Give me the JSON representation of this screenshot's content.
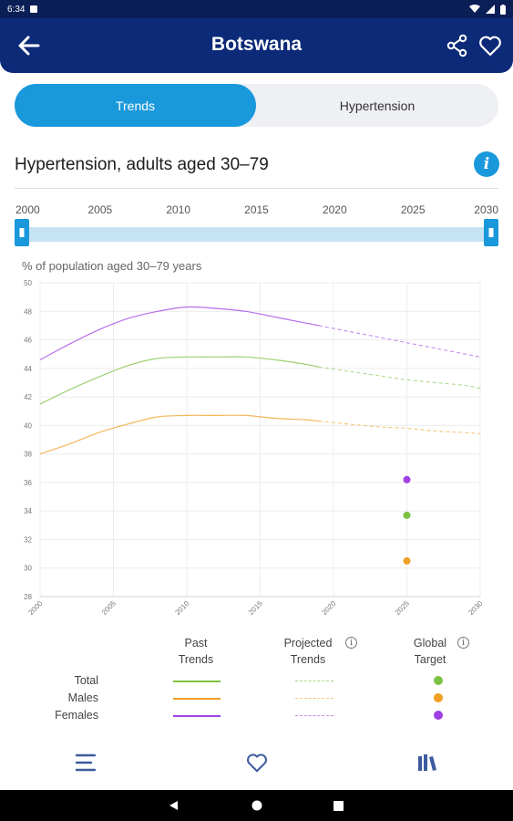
{
  "status_bar": {
    "time": "6:34"
  },
  "app_bar": {
    "title": "Botswana"
  },
  "tabs": [
    {
      "label": "Trends",
      "active": true
    },
    {
      "label": "Hypertension",
      "active": false
    }
  ],
  "section": {
    "title": "Hypertension, adults aged 30–79"
  },
  "range_slider": {
    "ticks": [
      "2000",
      "2005",
      "2010",
      "2015",
      "2020",
      "2025",
      "2030"
    ],
    "start": 2000,
    "end": 2030
  },
  "colors": {
    "accent": "#1a98dc",
    "app_bar": "#0c2a78",
    "total": "#7cc142",
    "males": "#f0a024",
    "females": "#9e3fe3"
  },
  "chart_data": {
    "type": "line",
    "ylabel": "% of population aged 30–79 years",
    "xlim": [
      2000,
      2030
    ],
    "ylim": [
      28,
      50
    ],
    "x_ticks": [
      2000,
      2005,
      2010,
      2015,
      2020,
      2025,
      2030
    ],
    "y_ticks": [
      28,
      30,
      32,
      34,
      36,
      38,
      40,
      42,
      44,
      46,
      48,
      50
    ],
    "grid": true,
    "series": [
      {
        "name": "Total",
        "color_key": "total",
        "past": {
          "x": [
            2000,
            2002,
            2004,
            2006,
            2008,
            2010,
            2012,
            2014,
            2016,
            2018,
            2019
          ],
          "y": [
            41.5,
            42.5,
            43.4,
            44.2,
            44.7,
            44.8,
            44.8,
            44.8,
            44.6,
            44.3,
            44.1
          ]
        },
        "projected": {
          "x": [
            2019,
            2021,
            2023,
            2025,
            2027,
            2029,
            2030
          ],
          "y": [
            44.1,
            43.8,
            43.5,
            43.2,
            43.0,
            42.8,
            42.6
          ]
        },
        "target": {
          "x": 2025,
          "y": 33.7
        }
      },
      {
        "name": "Males",
        "color_key": "males",
        "past": {
          "x": [
            2000,
            2002,
            2004,
            2006,
            2008,
            2010,
            2012,
            2014,
            2016,
            2018,
            2019
          ],
          "y": [
            38.0,
            38.7,
            39.5,
            40.1,
            40.6,
            40.7,
            40.7,
            40.7,
            40.5,
            40.4,
            40.3
          ]
        },
        "projected": {
          "x": [
            2019,
            2021,
            2023,
            2025,
            2027,
            2029,
            2030
          ],
          "y": [
            40.3,
            40.1,
            39.9,
            39.8,
            39.6,
            39.5,
            39.4
          ]
        },
        "target": {
          "x": 2025,
          "y": 30.5
        }
      },
      {
        "name": "Females",
        "color_key": "females",
        "past": {
          "x": [
            2000,
            2002,
            2004,
            2006,
            2008,
            2010,
            2012,
            2014,
            2016,
            2018,
            2019
          ],
          "y": [
            44.6,
            45.7,
            46.7,
            47.5,
            48.0,
            48.3,
            48.2,
            48.0,
            47.6,
            47.2,
            47.0
          ]
        },
        "projected": {
          "x": [
            2019,
            2021,
            2023,
            2025,
            2027,
            2029,
            2030
          ],
          "y": [
            47.0,
            46.6,
            46.2,
            45.8,
            45.4,
            45.0,
            44.8
          ]
        },
        "target": {
          "x": 2025,
          "y": 36.2
        }
      }
    ]
  },
  "legend": {
    "headers": {
      "past": [
        "Past",
        "Trends"
      ],
      "projected": [
        "Projected",
        "Trends"
      ],
      "target": [
        "Global",
        "Target"
      ]
    },
    "rows": [
      "Total",
      "Males",
      "Females"
    ]
  }
}
